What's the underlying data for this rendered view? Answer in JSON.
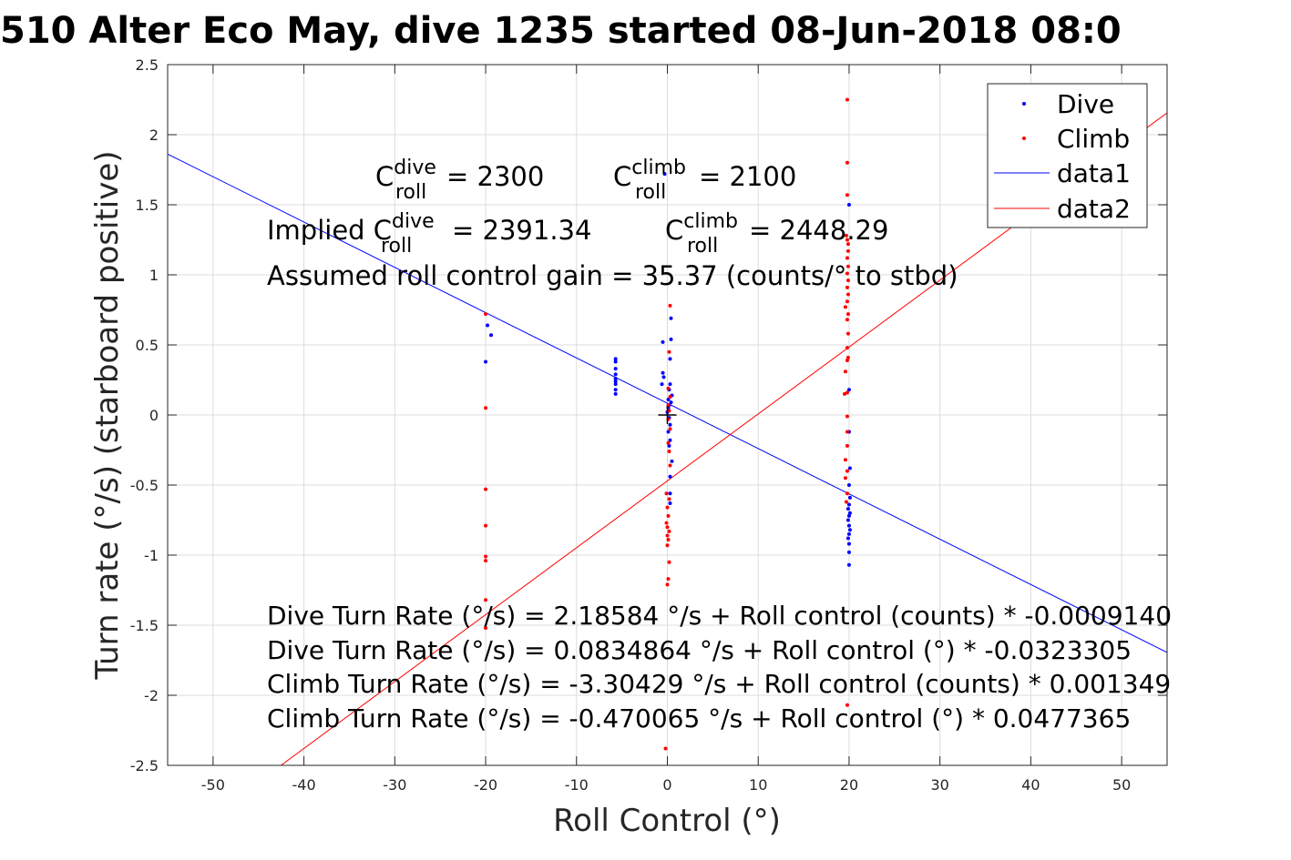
{
  "chart_data": {
    "type": "scatter",
    "title": "510 Alter Eco May, dive 1235 started 08-Jun-2018 08:0",
    "xlabel": "Roll Control (°)",
    "ylabel": "Turn rate (°/s) (starboard positive)",
    "xlim": [
      -55,
      55
    ],
    "ylim": [
      -2.5,
      2.5
    ],
    "xticks": [
      -50,
      -40,
      -30,
      -20,
      -10,
      0,
      10,
      20,
      30,
      40,
      50
    ],
    "yticks": [
      -2.5,
      -2,
      -1.5,
      -1,
      -0.5,
      0,
      0.5,
      1,
      1.5,
      2,
      2.5
    ],
    "xtick_labels": [
      "-50",
      "-40",
      "-30",
      "-20",
      "-10",
      "0",
      "10",
      "20",
      "30",
      "40",
      "50"
    ],
    "ytick_labels": [
      "-2.5",
      "-2",
      "-1.5",
      "-1",
      "-0.5",
      "0",
      "0.5",
      "1",
      "1.5",
      "2",
      "2.5"
    ],
    "grid": true,
    "legend_position": "top-right",
    "series": [
      {
        "name": "Dive",
        "kind": "points",
        "color": "#0000ff",
        "points": [
          [
            -19.8,
            0.64
          ],
          [
            -19.4,
            0.57
          ],
          [
            -20.0,
            0.38
          ],
          [
            -5.7,
            0.4
          ],
          [
            -5.7,
            0.38
          ],
          [
            -5.7,
            0.33
          ],
          [
            -5.7,
            0.29
          ],
          [
            -5.7,
            0.26
          ],
          [
            -5.7,
            0.24
          ],
          [
            -5.7,
            0.22
          ],
          [
            -5.7,
            0.18
          ],
          [
            -5.7,
            0.15
          ],
          [
            -0.3,
            1.72
          ],
          [
            0.4,
            0.69
          ],
          [
            0.4,
            0.54
          ],
          [
            -0.5,
            0.52
          ],
          [
            0.3,
            0.4
          ],
          [
            -0.5,
            0.3
          ],
          [
            -0.4,
            0.27
          ],
          [
            -0.6,
            0.22
          ],
          [
            0.3,
            0.22
          ],
          [
            0.2,
            0.18
          ],
          [
            0.5,
            0.14
          ],
          [
            0.1,
            0.11
          ],
          [
            0.4,
            0.09
          ],
          [
            0.2,
            0.07
          ],
          [
            0.1,
            0.05
          ],
          [
            0.0,
            0.02
          ],
          [
            0.2,
            -0.02
          ],
          [
            0.3,
            -0.07
          ],
          [
            0.1,
            -0.12
          ],
          [
            0.3,
            -0.18
          ],
          [
            0.2,
            -0.22
          ],
          [
            0.5,
            -0.33
          ],
          [
            0.3,
            -0.44
          ],
          [
            0.3,
            -0.56
          ],
          [
            0.3,
            -0.63
          ],
          [
            20.0,
            1.5
          ],
          [
            20.0,
            0.18
          ],
          [
            20.0,
            -0.12
          ],
          [
            20.1,
            -0.38
          ],
          [
            20.0,
            -0.5
          ],
          [
            20.1,
            -0.59
          ],
          [
            20.0,
            -0.64
          ],
          [
            19.9,
            -0.67
          ],
          [
            20.1,
            -0.7
          ],
          [
            20.0,
            -0.72
          ],
          [
            19.9,
            -0.75
          ],
          [
            20.0,
            -0.79
          ],
          [
            20.1,
            -0.82
          ],
          [
            20.0,
            -0.85
          ],
          [
            19.9,
            -0.88
          ],
          [
            20.0,
            -0.92
          ],
          [
            20.0,
            -0.98
          ],
          [
            20.0,
            -1.07
          ]
        ]
      },
      {
        "name": "Climb",
        "kind": "points",
        "color": "#ff0000",
        "points": [
          [
            -20.0,
            0.72
          ],
          [
            -20.0,
            0.05
          ],
          [
            -20.0,
            -0.53
          ],
          [
            -20.0,
            -0.79
          ],
          [
            -20.0,
            -1.01
          ],
          [
            -20.0,
            -1.04
          ],
          [
            -20.0,
            -1.32
          ],
          [
            -20.0,
            -1.52
          ],
          [
            0.3,
            0.78
          ],
          [
            0.2,
            0.45
          ],
          [
            0.1,
            0.19
          ],
          [
            0.3,
            0.13
          ],
          [
            0.1,
            0.07
          ],
          [
            0.2,
            0.03
          ],
          [
            0.1,
            -0.03
          ],
          [
            0.3,
            -0.1
          ],
          [
            0.1,
            -0.2
          ],
          [
            0.2,
            -0.26
          ],
          [
            0.3,
            -0.36
          ],
          [
            -0.1,
            -0.56
          ],
          [
            0.2,
            -0.6
          ],
          [
            0.0,
            -0.66
          ],
          [
            0.1,
            -0.72
          ],
          [
            -0.1,
            -0.77
          ],
          [
            0.0,
            -0.8
          ],
          [
            0.2,
            -0.83
          ],
          [
            0.0,
            -0.86
          ],
          [
            0.1,
            -0.89
          ],
          [
            0.0,
            -0.93
          ],
          [
            0.2,
            -1.05
          ],
          [
            0.1,
            -1.17
          ],
          [
            0.0,
            -1.21
          ],
          [
            -0.2,
            -2.38
          ],
          [
            19.8,
            2.25
          ],
          [
            19.8,
            1.8
          ],
          [
            19.8,
            1.57
          ],
          [
            19.7,
            1.28
          ],
          [
            19.8,
            1.25
          ],
          [
            19.9,
            1.22
          ],
          [
            19.9,
            1.17
          ],
          [
            19.8,
            1.12
          ],
          [
            19.9,
            1.06
          ],
          [
            19.8,
            1.01
          ],
          [
            19.9,
            0.96
          ],
          [
            19.8,
            0.91
          ],
          [
            19.9,
            0.86
          ],
          [
            19.8,
            0.81
          ],
          [
            19.6,
            0.77
          ],
          [
            19.9,
            0.72
          ],
          [
            19.8,
            0.68
          ],
          [
            19.9,
            0.58
          ],
          [
            19.8,
            0.48
          ],
          [
            19.9,
            0.41
          ],
          [
            19.8,
            0.39
          ],
          [
            19.6,
            0.31
          ],
          [
            19.8,
            0.16
          ],
          [
            19.5,
            0.15
          ],
          [
            19.8,
            -0.01
          ],
          [
            19.8,
            -0.12
          ],
          [
            19.8,
            -0.22
          ],
          [
            19.6,
            -0.32
          ],
          [
            19.8,
            -0.4
          ],
          [
            19.6,
            -0.45
          ],
          [
            19.8,
            -0.56
          ],
          [
            19.7,
            -0.62
          ],
          [
            19.8,
            -2.07
          ]
        ]
      },
      {
        "name": "data1",
        "kind": "line",
        "color": "#0000ff",
        "intercept": 0.0834864,
        "slope": -0.0323305
      },
      {
        "name": "data2",
        "kind": "line",
        "color": "#ff0000",
        "intercept": -0.470065,
        "slope": 0.0477365
      }
    ],
    "marker": {
      "x": 0,
      "y": 0,
      "symbol": "+",
      "color": "#000000"
    },
    "annotations": {
      "croll_line": {
        "c1": "C",
        "sup1": "dive",
        "sub1": "roll",
        "val1": " = 2300",
        "c2": "C",
        "sup2": "climb",
        "sub2": "roll",
        "val2": " = 2100"
      },
      "implied_line": {
        "prefix": "Implied C",
        "sup1": "dive",
        "sub1": "roll",
        "val1": " = 2391.34",
        "c2": "C",
        "sup2": "climb",
        "sub2": "roll",
        "val2": " = 2448.29"
      },
      "gain_line": "Assumed roll control gain = 35.37 (counts/° to stbd)",
      "equations": [
        "Dive Turn Rate (°/s) = 2.18584 °/s + Roll control (counts) * -0.0009140",
        "Dive Turn Rate (°/s) = 0.0834864 °/s + Roll control (°) * -0.0323305",
        "Climb Turn Rate (°/s) = -3.30429 °/s + Roll control (counts) * 0.001349",
        "Climb Turn Rate (°/s) = -0.470065 °/s + Roll control (°) * 0.0477365"
      ]
    }
  }
}
